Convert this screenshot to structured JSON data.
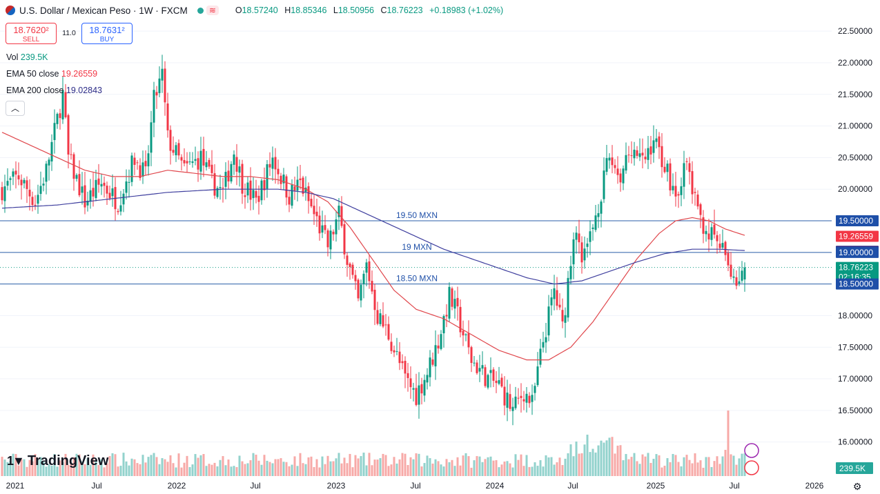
{
  "header": {
    "symbol": "U.S. Dollar / Mexican Peso · 1W · FXCM",
    "ohlc": [
      {
        "k": "O",
        "v": "18.57240"
      },
      {
        "k": "H",
        "v": "18.85346"
      },
      {
        "k": "L",
        "v": "18.50956"
      },
      {
        "k": "C",
        "v": "18.76223"
      }
    ],
    "change": "+0.18983 (+1.02%)"
  },
  "trade": {
    "sell_price": "18.7620²",
    "sell_label": "SELL",
    "spread": "11.0",
    "buy_price": "18.7631²",
    "buy_label": "BUY"
  },
  "legend": {
    "vol_label": "Vol",
    "vol_value": "239.5K",
    "ema50_label": "EMA 50 close",
    "ema50_value": "19.26559",
    "ema200_label": "EMA 200 close",
    "ema200_value": "19.02843"
  },
  "brand": "TradingView",
  "colors": {
    "up": "#089981",
    "down": "#f23645",
    "ema50": "#e0474c",
    "ema200": "#3f3f9e",
    "hline": "#2a5ea8",
    "volUp": "#92d2cc",
    "volDown": "#f7a9a7"
  },
  "chart_data": {
    "type": "candlestick",
    "ylim": [
      15.8,
      22.6
    ],
    "y_ticks": [
      "22.50000",
      "22.00000",
      "21.50000",
      "21.00000",
      "20.50000",
      "20.00000",
      "19.50000",
      "19.00000",
      "18.50000",
      "18.00000",
      "17.50000",
      "17.00000",
      "16.50000",
      "16.00000"
    ],
    "x_ticks": [
      "2021",
      "Jul",
      "2022",
      "Jul",
      "2023",
      "Jul",
      "2024",
      "Jul",
      "2025",
      "Jul",
      "2026"
    ],
    "price_labels": [
      {
        "value": 19.5,
        "text": "19.50000",
        "color": "#1e4fa8"
      },
      {
        "value": 19.26559,
        "text": "19.26559",
        "color": "#f23645"
      },
      {
        "value": 19.02843,
        "text": "19.02843",
        "color": "#2b2b87"
      },
      {
        "value": 19.0,
        "text": "19.00000",
        "color": "#1e4fa8"
      },
      {
        "value": 18.76223,
        "text": "18.76223",
        "countdown": "02:16:35",
        "color": "#089981"
      },
      {
        "value": 18.5,
        "text": "18.50000",
        "color": "#1e4fa8"
      }
    ],
    "volume_label": "239.5K",
    "horizontal_lines": [
      {
        "value": 19.5,
        "label": "19.50 MXN"
      },
      {
        "value": 19.0,
        "label": "19 MXN"
      },
      {
        "value": 18.5,
        "label": "18.50 MXN"
      }
    ],
    "anchors": [
      [
        0,
        20.0
      ],
      [
        6,
        20.2
      ],
      [
        12,
        19.8
      ],
      [
        16,
        20.3
      ],
      [
        22,
        21.5
      ],
      [
        24,
        20.5
      ],
      [
        30,
        19.8
      ],
      [
        36,
        20.1
      ],
      [
        42,
        19.8
      ],
      [
        48,
        20.5
      ],
      [
        52,
        20.2
      ],
      [
        55,
        21.4
      ],
      [
        58,
        21.8
      ],
      [
        60,
        20.8
      ],
      [
        66,
        20.3
      ],
      [
        72,
        20.5
      ],
      [
        76,
        20.1
      ],
      [
        80,
        19.95
      ],
      [
        84,
        20.6
      ],
      [
        87,
        20.1
      ],
      [
        92,
        19.8
      ],
      [
        98,
        20.5
      ],
      [
        104,
        19.9
      ],
      [
        108,
        20.1
      ],
      [
        114,
        19.5
      ],
      [
        118,
        19.1
      ],
      [
        122,
        19.6
      ],
      [
        125,
        18.9
      ],
      [
        129,
        18.2
      ],
      [
        132,
        18.8
      ],
      [
        136,
        18.0
      ],
      [
        140,
        17.7
      ],
      [
        146,
        17.0
      ],
      [
        150,
        16.75
      ],
      [
        154,
        17.1
      ],
      [
        158,
        17.6
      ],
      [
        162,
        18.3
      ],
      [
        165,
        18.0
      ],
      [
        170,
        17.3
      ],
      [
        176,
        17.0
      ],
      [
        180,
        16.9
      ],
      [
        185,
        16.5
      ],
      [
        189,
        16.8
      ],
      [
        192,
        16.6
      ],
      [
        196,
        17.6
      ],
      [
        200,
        18.4
      ],
      [
        203,
        17.8
      ],
      [
        207,
        19.3
      ],
      [
        211,
        18.9
      ],
      [
        215,
        19.6
      ],
      [
        220,
        20.5
      ],
      [
        224,
        20.2
      ],
      [
        228,
        20.7
      ],
      [
        232,
        20.4
      ],
      [
        236,
        20.8
      ],
      [
        240,
        20.4
      ],
      [
        244,
        19.9
      ],
      [
        248,
        20.4
      ],
      [
        252,
        19.6
      ],
      [
        256,
        19.3
      ],
      [
        260,
        19.1
      ],
      [
        263,
        18.8
      ],
      [
        266,
        18.55
      ],
      [
        269,
        18.76
      ]
    ],
    "ema50_anchors": [
      [
        0,
        20.9
      ],
      [
        10,
        20.7
      ],
      [
        20,
        20.5
      ],
      [
        30,
        20.3
      ],
      [
        40,
        20.2
      ],
      [
        50,
        20.2
      ],
      [
        60,
        20.3
      ],
      [
        70,
        20.25
      ],
      [
        80,
        20.2
      ],
      [
        90,
        20.2
      ],
      [
        100,
        20.15
      ],
      [
        110,
        20.0
      ],
      [
        118,
        19.8
      ],
      [
        126,
        19.4
      ],
      [
        134,
        18.9
      ],
      [
        142,
        18.4
      ],
      [
        150,
        18.1
      ],
      [
        160,
        17.95
      ],
      [
        170,
        17.7
      ],
      [
        180,
        17.45
      ],
      [
        190,
        17.3
      ],
      [
        198,
        17.3
      ],
      [
        206,
        17.5
      ],
      [
        214,
        17.9
      ],
      [
        222,
        18.4
      ],
      [
        230,
        18.9
      ],
      [
        238,
        19.3
      ],
      [
        244,
        19.5
      ],
      [
        250,
        19.55
      ],
      [
        256,
        19.5
      ],
      [
        262,
        19.37
      ],
      [
        269,
        19.27
      ]
    ],
    "ema200_anchors": [
      [
        0,
        19.7
      ],
      [
        20,
        19.75
      ],
      [
        40,
        19.85
      ],
      [
        60,
        19.95
      ],
      [
        80,
        20.0
      ],
      [
        100,
        20.0
      ],
      [
        110,
        19.95
      ],
      [
        120,
        19.85
      ],
      [
        130,
        19.65
      ],
      [
        140,
        19.45
      ],
      [
        150,
        19.25
      ],
      [
        160,
        19.05
      ],
      [
        170,
        18.9
      ],
      [
        180,
        18.75
      ],
      [
        190,
        18.6
      ],
      [
        200,
        18.5
      ],
      [
        210,
        18.55
      ],
      [
        220,
        18.7
      ],
      [
        230,
        18.85
      ],
      [
        240,
        18.98
      ],
      [
        250,
        19.05
      ],
      [
        260,
        19.05
      ],
      [
        269,
        19.03
      ]
    ]
  }
}
